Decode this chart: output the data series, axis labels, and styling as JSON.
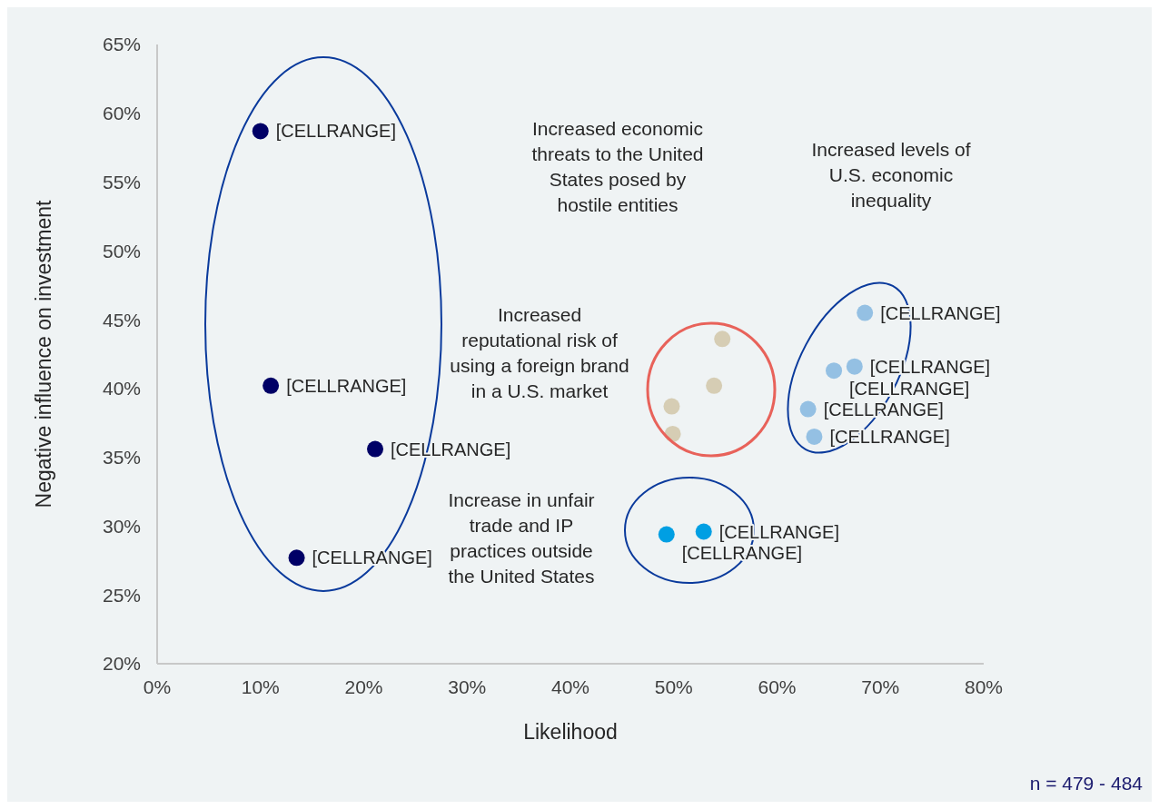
{
  "chart_data": {
    "type": "scatter",
    "xlabel": "Likelihood",
    "ylabel": "Negative influence on investment",
    "xlim": [
      0,
      80
    ],
    "ylim": [
      20,
      65
    ],
    "xticks": [
      {
        "value": 0,
        "label": "0%"
      },
      {
        "value": 10,
        "label": "10%"
      },
      {
        "value": 20,
        "label": "20%"
      },
      {
        "value": 30,
        "label": "30%"
      },
      {
        "value": 40,
        "label": "40%"
      },
      {
        "value": 50,
        "label": "50%"
      },
      {
        "value": 60,
        "label": "60%"
      },
      {
        "value": 70,
        "label": "70%"
      },
      {
        "value": 80,
        "label": "80%"
      }
    ],
    "yticks": [
      {
        "value": 20,
        "label": "20%"
      },
      {
        "value": 25,
        "label": "25%"
      },
      {
        "value": 30,
        "label": "30%"
      },
      {
        "value": 35,
        "label": "35%"
      },
      {
        "value": 40,
        "label": "40%"
      },
      {
        "value": 45,
        "label": "45%"
      },
      {
        "value": 50,
        "label": "50%"
      },
      {
        "value": 55,
        "label": "55%"
      },
      {
        "value": 60,
        "label": "60%"
      },
      {
        "value": 65,
        "label": "65%"
      }
    ],
    "grid": false,
    "legend": false,
    "marker": "circle",
    "series": [
      {
        "color": "#000066",
        "x": [
          10.0,
          11.0,
          21.1,
          13.5
        ],
        "values": [
          58.7,
          40.2,
          35.6,
          27.7
        ],
        "value_labels": [
          "[CELLRANGE]",
          "[CELLRANGE]",
          "[CELLRANGE]",
          "[CELLRANGE]"
        ]
      },
      {
        "color": "#009fe3",
        "x": [
          49.3,
          52.9
        ],
        "values": [
          29.4,
          29.6
        ],
        "value_labels": [
          "[CELLRANGE]",
          "[CELLRANGE]"
        ]
      },
      {
        "color": "#d6cdb4",
        "x": [
          54.7,
          53.9,
          49.8,
          49.9
        ],
        "values": [
          43.6,
          40.2,
          38.7,
          36.7
        ]
      },
      {
        "color": "#94c0e3",
        "x": [
          68.5,
          67.5,
          65.5,
          63.0,
          63.6
        ],
        "values": [
          45.5,
          41.6,
          41.3,
          38.5,
          36.5
        ],
        "value_labels": [
          "[CELLRANGE]",
          "[CELLRANGE]",
          "[CELLRANGE]",
          "[CELLRANGE]",
          "[CELLRANGE]"
        ]
      }
    ],
    "annotations": [
      "Increased economic threats to the United States posed by hostile entities",
      "Increased levels of U.S. economic inequality",
      "Increased reputational risk of using a foreign brand in a U.S. market",
      "Increase in unfair trade and IP practices outside the United States",
      "n = 479 - 484"
    ]
  }
}
